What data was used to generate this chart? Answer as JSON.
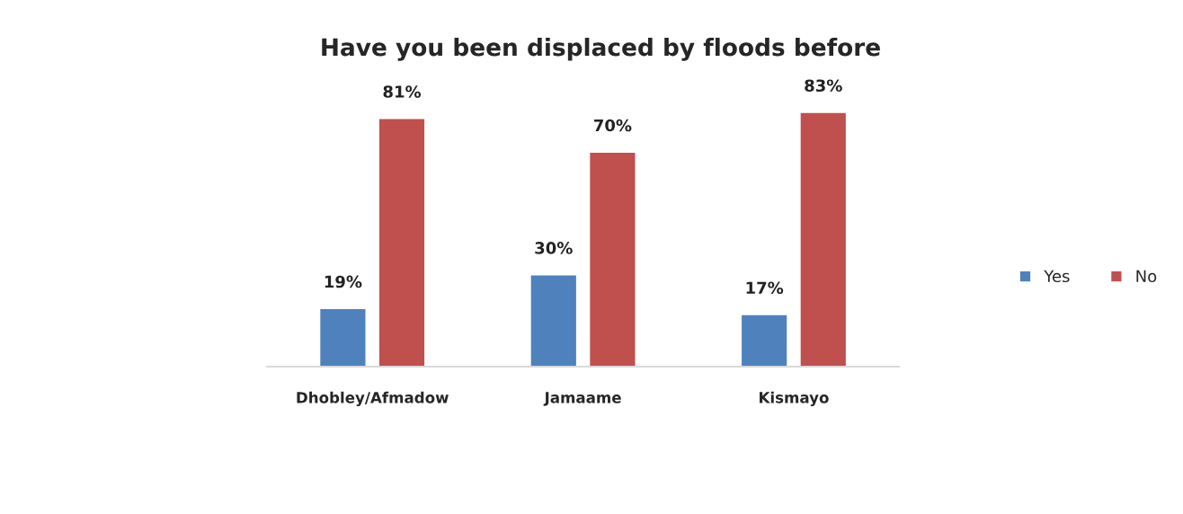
{
  "chart_data": {
    "type": "bar",
    "title": "Have you been displaced by floods before",
    "categories": [
      "Dhobley/Afmadow",
      "Jamaame",
      "Kismayo"
    ],
    "series": [
      {
        "name": "Yes",
        "color": "#4f81bd",
        "values": [
          19,
          30,
          17
        ],
        "value_labels": [
          "19%",
          "30%",
          "17%"
        ]
      },
      {
        "name": "No",
        "color": "#c0504d",
        "values": [
          81,
          70,
          83
        ],
        "value_labels": [
          "81%",
          "70%",
          "83%"
        ]
      }
    ],
    "legend": "right",
    "grid": false
  }
}
